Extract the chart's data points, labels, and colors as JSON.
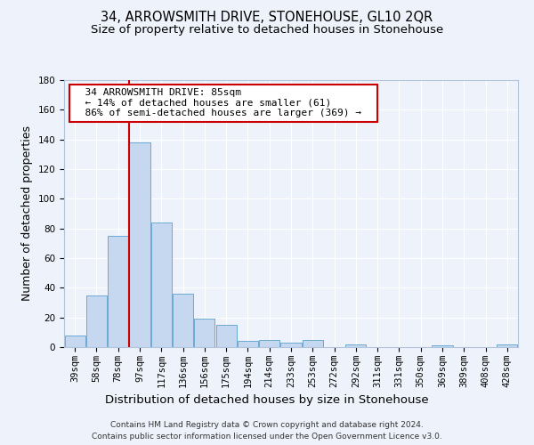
{
  "title": "34, ARROWSMITH DRIVE, STONEHOUSE, GL10 2QR",
  "subtitle": "Size of property relative to detached houses in Stonehouse",
  "xlabel": "Distribution of detached houses by size in Stonehouse",
  "ylabel": "Number of detached properties",
  "bar_labels": [
    "39sqm",
    "58sqm",
    "78sqm",
    "97sqm",
    "117sqm",
    "136sqm",
    "156sqm",
    "175sqm",
    "194sqm",
    "214sqm",
    "233sqm",
    "253sqm",
    "272sqm",
    "292sqm",
    "311sqm",
    "331sqm",
    "350sqm",
    "369sqm",
    "389sqm",
    "408sqm",
    "428sqm"
  ],
  "bar_values": [
    8,
    35,
    75,
    138,
    84,
    36,
    19,
    15,
    4,
    5,
    3,
    5,
    0,
    2,
    0,
    0,
    0,
    1,
    0,
    0,
    2
  ],
  "bar_color": "#c5d8f0",
  "bar_edge_color": "#6aaad4",
  "ylim": [
    0,
    180
  ],
  "yticks": [
    0,
    20,
    40,
    60,
    80,
    100,
    120,
    140,
    160,
    180
  ],
  "red_line_x": 2.5,
  "property_size": "85sqm",
  "property_name": "34 ARROWSMITH DRIVE",
  "pct_smaller": "14%",
  "n_smaller": 61,
  "pct_larger_semi": "86%",
  "n_larger_semi": 369,
  "annotation_box_color": "#ffffff",
  "annotation_box_edge": "#cc0000",
  "red_line_color": "#cc0000",
  "footer_line1": "Contains HM Land Registry data © Crown copyright and database right 2024.",
  "footer_line2": "Contains public sector information licensed under the Open Government Licence v3.0.",
  "background_color": "#eef2fa",
  "grid_color": "#ffffff",
  "title_fontsize": 10.5,
  "subtitle_fontsize": 9.5,
  "axis_label_fontsize": 9,
  "tick_fontsize": 7.5,
  "annotation_fontsize": 8,
  "footer_fontsize": 6.5
}
